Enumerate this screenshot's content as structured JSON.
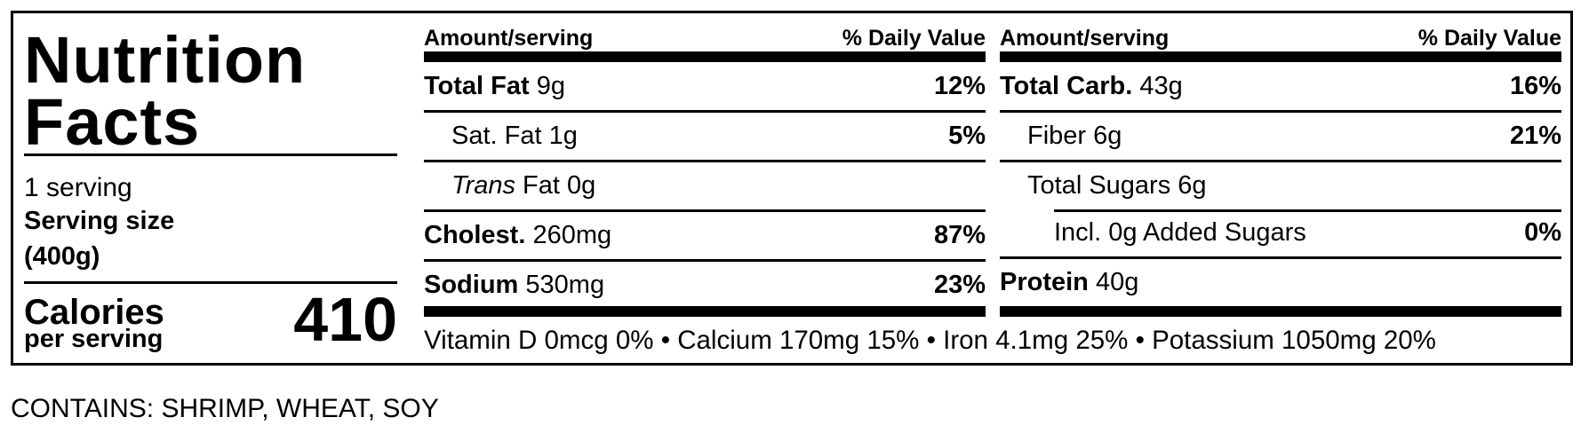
{
  "title_line1": "Nutrition",
  "title_line2": "Facts",
  "servings": "1 serving",
  "serving_size_label": "Serving size",
  "serving_size_value": "(400g)",
  "calories_label": "Calories",
  "calories_sub": "per serving",
  "calories_value": "410",
  "left_table": {
    "header_amount": "Amount/serving",
    "header_dv": "% Daily Value",
    "rows": [
      {
        "name": "Total Fat",
        "amount": "9g",
        "dv": "12%"
      },
      {
        "name": "Sat. Fat",
        "amount": "1g",
        "dv": "5%"
      },
      {
        "name": "Trans",
        "amount": "Fat 0g",
        "dv": ""
      },
      {
        "name": "Cholest.",
        "amount": "260mg",
        "dv": "87%"
      },
      {
        "name": "Sodium",
        "amount": "530mg",
        "dv": "23%"
      }
    ]
  },
  "right_table": {
    "header_amount": "Amount/serving",
    "header_dv": "% Daily Value",
    "rows": [
      {
        "name": "Total Carb.",
        "amount": "43g",
        "dv": "16%"
      },
      {
        "name": "Fiber",
        "amount": "6g",
        "dv": "21%"
      },
      {
        "name": "Total Sugars",
        "amount": "6g",
        "dv": ""
      },
      {
        "name": "Incl. 0g Added Sugars",
        "amount": "",
        "dv": "0%"
      },
      {
        "name": "Protein",
        "amount": "40g",
        "dv": ""
      }
    ]
  },
  "vitamins": "Vitamin D 0mcg 0% • Calcium 170mg 15% • Iron 4.1mg 25% • Potassium 1050mg 20%",
  "contains": "CONTAINS: SHRIMP, WHEAT, SOY"
}
